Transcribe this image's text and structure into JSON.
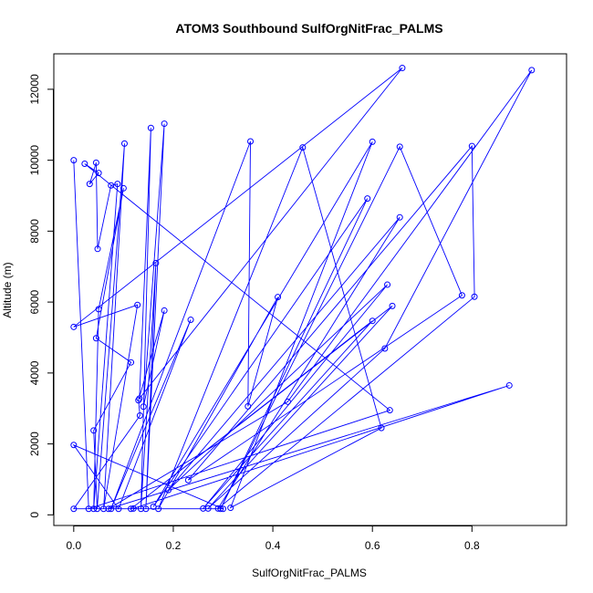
{
  "chart_data": {
    "type": "line",
    "title": "ATOM3 Southbound SulfOrgNitFrac_PALMS",
    "xlabel": "SulfOrgNitFrac_PALMS",
    "ylabel": "Altitude (m)",
    "xlim": [
      -0.04,
      0.99
    ],
    "ylim": [
      -300,
      13000
    ],
    "x_ticks": [
      "0.0",
      "0.2",
      "0.4",
      "0.6",
      "0.8"
    ],
    "x_tick_values": [
      0.0,
      0.2,
      0.4,
      0.6,
      0.8
    ],
    "y_ticks": [
      "0",
      "2000",
      "4000",
      "6000",
      "8000",
      "10000",
      "12000"
    ],
    "y_tick_values": [
      0,
      2000,
      4000,
      6000,
      8000,
      10000,
      12000
    ],
    "grid": false,
    "series": [
      {
        "color": "#0000ff",
        "marker": "open-circle",
        "points": [
          [
            0.0,
            10000
          ],
          [
            0.03,
            170
          ],
          [
            0.635,
            2950
          ],
          [
            0.022,
            9900
          ],
          [
            0.05,
            9640
          ],
          [
            0.032,
            9330
          ],
          [
            0.045,
            9930
          ],
          [
            0.048,
            7500
          ],
          [
            0.075,
            9290
          ],
          [
            0.088,
            9330
          ],
          [
            0.04,
            170
          ],
          [
            0.05,
            5800
          ],
          [
            0.1,
            9210
          ],
          [
            0.045,
            4980
          ],
          [
            0.115,
            4300
          ],
          [
            0.04,
            2380
          ],
          [
            0.047,
            170
          ],
          [
            0.102,
            10470
          ],
          [
            0.06,
            170
          ],
          [
            0.128,
            5920
          ],
          [
            0.0,
            5300
          ],
          [
            0.66,
            12600
          ],
          [
            0.132,
            3280
          ],
          [
            0.155,
            10910
          ],
          [
            0.135,
            170
          ],
          [
            0.165,
            7100
          ],
          [
            0.145,
            170
          ],
          [
            0.182,
            11030
          ],
          [
            0.14,
            3050
          ],
          [
            0.182,
            5760
          ],
          [
            0.13,
            3230
          ],
          [
            0.133,
            2800
          ],
          [
            0.0,
            170
          ],
          [
            0.3,
            170
          ],
          [
            0.0,
            1970
          ],
          [
            0.09,
            170
          ],
          [
            0.235,
            5500
          ],
          [
            0.075,
            170
          ],
          [
            0.355,
            10530
          ],
          [
            0.35,
            3060
          ],
          [
            0.41,
            6140
          ],
          [
            0.17,
            170
          ],
          [
            0.46,
            10360
          ],
          [
            0.618,
            2450
          ],
          [
            0.315,
            200
          ],
          [
            0.6,
            10520
          ],
          [
            0.16,
            230
          ],
          [
            0.59,
            8920
          ],
          [
            0.295,
            170
          ],
          [
            0.655,
            10380
          ],
          [
            0.78,
            6190
          ],
          [
            0.23,
            980
          ],
          [
            0.8,
            10400
          ],
          [
            0.805,
            6150
          ],
          [
            0.29,
            180
          ],
          [
            0.655,
            8390
          ],
          [
            0.19,
            700
          ],
          [
            0.63,
            6490
          ],
          [
            0.26,
            180
          ],
          [
            0.6,
            5470
          ],
          [
            0.115,
            170
          ],
          [
            0.64,
            5890
          ],
          [
            0.27,
            180
          ],
          [
            0.625,
            4690
          ],
          [
            0.92,
            12540
          ],
          [
            0.43,
            3190
          ],
          [
            0.07,
            170
          ],
          [
            0.875,
            3650
          ],
          [
            0.12,
            180
          ]
        ]
      }
    ]
  }
}
